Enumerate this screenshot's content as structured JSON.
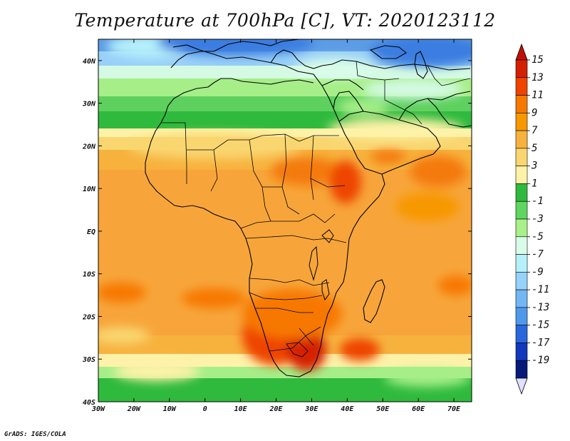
{
  "title": "Temperature at 700hPa [C], VT: 2020123112",
  "credit": "GrADS: IGES/COLA",
  "map": {
    "lon_labels": [
      "30W",
      "20W",
      "10W",
      "0",
      "10E",
      "20E",
      "30E",
      "40E",
      "50E",
      "60E",
      "70E"
    ],
    "lat_labels": [
      "40N",
      "30N",
      "20N",
      "10N",
      "EQ",
      "10S",
      "20S",
      "30S",
      "40S"
    ],
    "lon_range": [
      -30,
      75
    ],
    "lat_range": [
      -40,
      45
    ]
  },
  "colorbar": {
    "labels": [
      "15",
      "13",
      "11",
      "9",
      "7",
      "5",
      "3",
      "1",
      "-1",
      "-3",
      "-5",
      "-7",
      "-9",
      "-11",
      "-13",
      "-15",
      "-17",
      "-19"
    ],
    "colors": [
      "#d42000",
      "#ee4400",
      "#f77800",
      "#f79800",
      "#f7b23e",
      "#f9d670",
      "#fdf2a8",
      "#2fba3d",
      "#5fd65f",
      "#a8f08a",
      "#d8fce8",
      "#b6f0fa",
      "#96d2fa",
      "#72b6f4",
      "#5098ea",
      "#2868dc",
      "#1238be",
      "#061a7a"
    ],
    "top_arrow_color": "#c01000",
    "bottom_arrow_color": "#e0e0ff"
  }
}
